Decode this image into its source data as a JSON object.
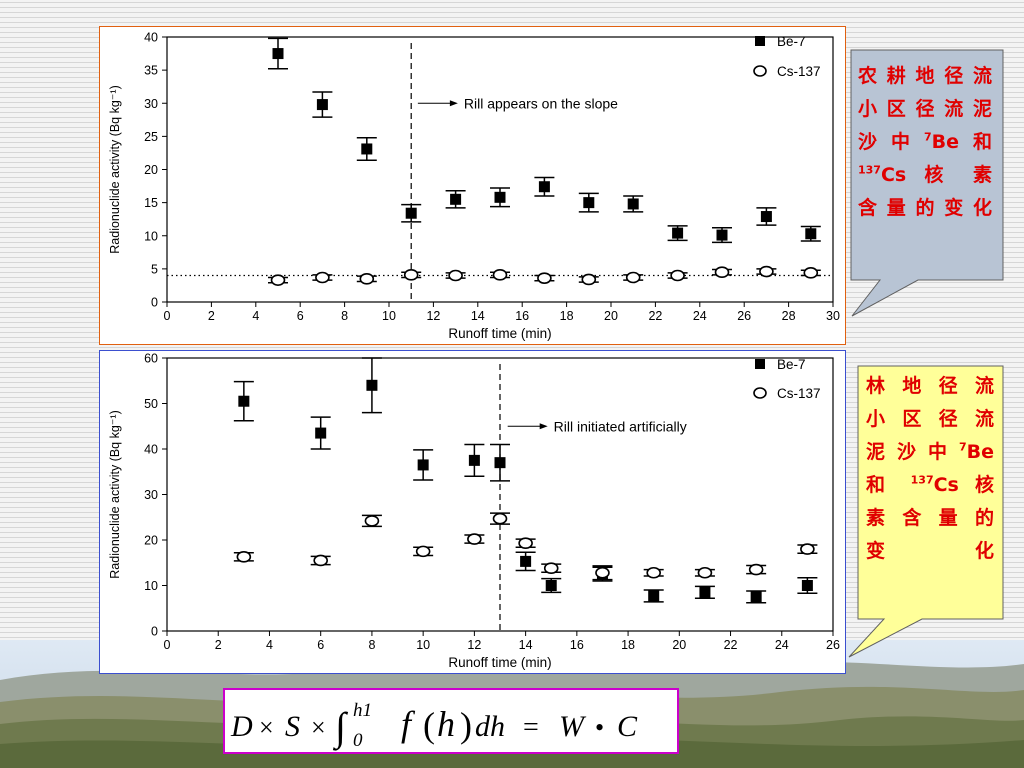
{
  "colors": {
    "be7": "#000000",
    "cs137": "#ffffff",
    "frame_top": "#e06010",
    "frame_bottom": "#3b4fcf",
    "callout_top_fill": "#b8c4d4",
    "callout_bottom_fill": "#ffff99",
    "callout_text": "#e00000",
    "formula_border": "#cc00cc"
  },
  "chart_data": [
    {
      "type": "scatter",
      "xlabel": "Runoff time (min)",
      "ylabel": "Radionuclide activity (Bq kg⁻¹)",
      "xlim": [
        0,
        30
      ],
      "ylim": [
        0,
        40
      ],
      "xticks": [
        0,
        2,
        4,
        6,
        8,
        10,
        12,
        14,
        16,
        18,
        20,
        22,
        24,
        26,
        28,
        30
      ],
      "yticks": [
        0,
        5,
        10,
        15,
        20,
        25,
        30,
        35,
        40
      ],
      "legend_position": "top-right",
      "error_bars": true,
      "series": [
        {
          "name": "Be-7",
          "marker": "filled-square",
          "x": [
            5,
            7,
            9,
            11,
            13,
            15,
            17,
            19,
            21,
            23,
            25,
            27,
            29
          ],
          "y": [
            37.5,
            29.8,
            23.1,
            13.4,
            15.5,
            15.8,
            17.4,
            15.0,
            14.8,
            10.4,
            10.1,
            12.9,
            10.3
          ],
          "err": [
            2.3,
            1.9,
            1.7,
            1.3,
            1.3,
            1.4,
            1.4,
            1.4,
            1.2,
            1.1,
            1.1,
            1.3,
            1.1
          ]
        },
        {
          "name": "Cs-137",
          "marker": "open-circle",
          "x": [
            5,
            7,
            9,
            11,
            13,
            15,
            17,
            19,
            21,
            23,
            25,
            27,
            29
          ],
          "y": [
            3.3,
            3.7,
            3.5,
            4.1,
            4.0,
            4.1,
            3.6,
            3.4,
            3.7,
            4.0,
            4.5,
            4.6,
            4.4
          ],
          "err": [
            0.4,
            0.4,
            0.4,
            0.4,
            0.4,
            0.4,
            0.4,
            0.4,
            0.4,
            0.4,
            0.4,
            0.4,
            0.4
          ]
        }
      ],
      "vline": {
        "x": 11,
        "style": "dashed"
      },
      "hline": {
        "y": 4,
        "style": "dotted"
      },
      "annotation": {
        "text": "Rill appears on the slope",
        "x": 11.3,
        "y": 30
      }
    },
    {
      "type": "scatter",
      "xlabel": "Runoff time (min)",
      "ylabel": "Radionuclide activity (Bq kg⁻¹)",
      "xlim": [
        0,
        26
      ],
      "ylim": [
        0,
        60
      ],
      "xticks": [
        0,
        2,
        4,
        6,
        8,
        10,
        12,
        14,
        16,
        18,
        20,
        22,
        24,
        26
      ],
      "yticks": [
        0,
        10,
        20,
        30,
        40,
        50,
        60
      ],
      "legend_position": "top-right",
      "error_bars": true,
      "series": [
        {
          "name": "Be-7",
          "marker": "filled-square",
          "x": [
            3,
            6,
            8,
            10,
            12,
            13,
            14,
            15,
            17,
            19,
            21,
            23,
            25
          ],
          "y": [
            50.5,
            43.5,
            54.0,
            36.5,
            37.5,
            37.0,
            15.3,
            10.0,
            12.5,
            7.7,
            8.5,
            7.5,
            10.0
          ],
          "err": [
            4.3,
            3.5,
            6.0,
            3.3,
            3.5,
            4.0,
            2.0,
            1.5,
            1.5,
            1.3,
            1.3,
            1.3,
            1.7
          ]
        },
        {
          "name": "Cs-137",
          "marker": "open-circle",
          "x": [
            3,
            6,
            8,
            10,
            12,
            13,
            14,
            15,
            17,
            19,
            21,
            23,
            25
          ],
          "y": [
            16.3,
            15.5,
            24.2,
            17.5,
            20.2,
            24.7,
            19.3,
            13.8,
            12.8,
            12.8,
            12.8,
            13.5,
            18.0
          ],
          "err": [
            0.9,
            0.9,
            1.2,
            0.9,
            0.9,
            1.2,
            0.9,
            0.9,
            1.5,
            0.7,
            0.7,
            0.9,
            0.9
          ]
        }
      ],
      "vline": {
        "x": 13,
        "style": "dashed"
      },
      "annotation": {
        "text": "Rill initiated artificially",
        "x": 13.3,
        "y": 45
      }
    }
  ],
  "callouts": {
    "top": {
      "line1": "农耕地径流",
      "line2": "小区径流泥",
      "line3_pre": "沙中",
      "line3_sup": "7",
      "line3_post": "Be和",
      "line4_sup": "137",
      "line4_post": "Cs 核 素",
      "line5": "含量的变化"
    },
    "bottom": {
      "line1": "林 地 径 流",
      "line2": "小 区 径 流",
      "line3_pre": "泥沙中",
      "line3_sup": "7",
      "line3_post": "Be",
      "line4_pre": "和 ",
      "line4_sup": "137",
      "line4_post": "Cs 核",
      "line5": "素 含 量 的",
      "line6": "变化"
    }
  },
  "formula": {
    "D": "D",
    "times1": "×",
    "S": "S",
    "times2": "×",
    "integral": "∫",
    "upper": "h1",
    "lower": "0",
    "f": "f",
    "paren_open": "(",
    "h": "h",
    "paren_close": ")",
    "dh": "dh",
    "equals": "=",
    "W": "W",
    "bullet": "•",
    "C": "C"
  }
}
